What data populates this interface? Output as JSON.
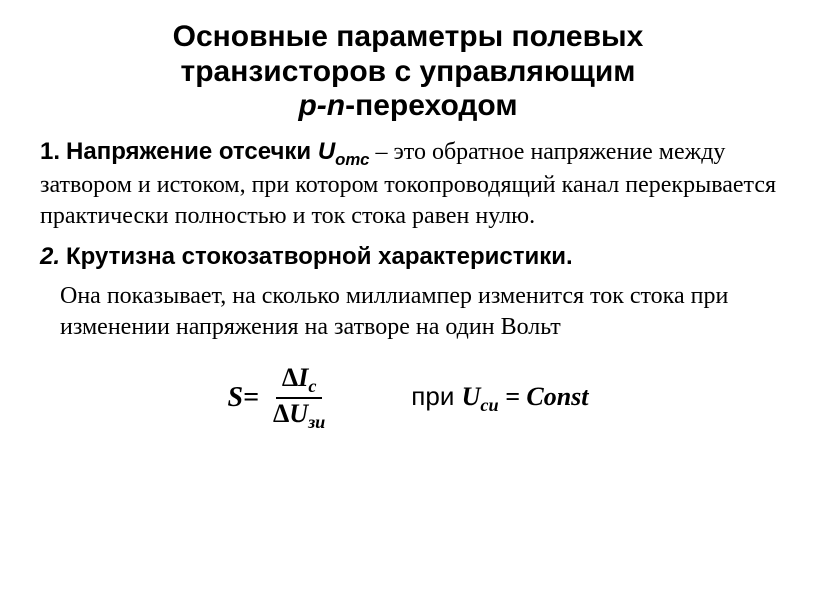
{
  "title_line1": "Основные параметры полевых",
  "title_line2": "транзисторов с управляющим",
  "title_line3_prefix": "p-n",
  "title_line3_suffix": "-переходом",
  "item1_num": "1.",
  "item1_lead": "Напряжение отсечки ",
  "item1_symbol": "U",
  "item1_symbol_sub": "отс",
  "item1_body": " – это обратное напряжение между затвором и истоком, при котором токопроводящий канал перекрывается практически полностью и ток стока равен нулю.",
  "item2_num": "2.",
  "item2_lead": " Крутизна  стокозатворной характеристики.",
  "item2_body": "Она показывает, на сколько миллиампер изменится ток стока при изменении напряжения на затворе на один Вольт",
  "formula": {
    "S": "S=",
    "delta": "Δ",
    "I": "I",
    "I_sub": "с",
    "U": "U",
    "U_sub": "зи",
    "pri": "при  ",
    "Uvar": "U",
    "Uvar_sub": "си",
    "eq": " = Const"
  },
  "colors": {
    "text": "#000000",
    "background": "#ffffff"
  },
  "fonts": {
    "title_size_pt": 30,
    "body_size_pt": 24,
    "formula_size_pt": 28
  }
}
